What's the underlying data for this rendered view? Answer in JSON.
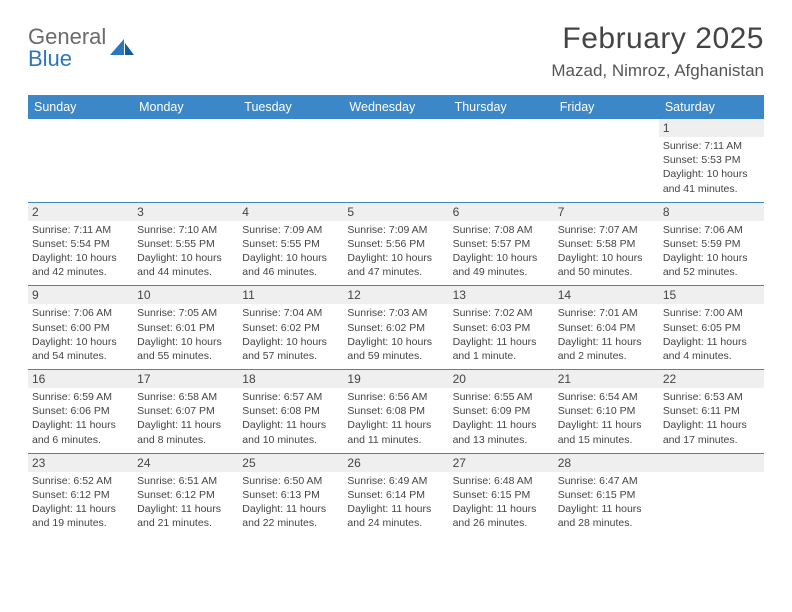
{
  "brand": {
    "name_top": "General",
    "name_bottom": "Blue"
  },
  "title": "February 2025",
  "location": "Mazad, Nimroz, Afghanistan",
  "colors": {
    "header_bg": "#3b87c8",
    "header_text": "#ffffff",
    "divider": "#3b87c8",
    "daynum_bg": "#efefef",
    "text": "#444444",
    "brand_gray": "#6a6a6a",
    "brand_blue": "#2a77bd"
  },
  "weekdays": [
    "Sunday",
    "Monday",
    "Tuesday",
    "Wednesday",
    "Thursday",
    "Friday",
    "Saturday"
  ],
  "weeks": [
    [
      null,
      null,
      null,
      null,
      null,
      null,
      {
        "d": "1",
        "sunrise": "7:11 AM",
        "sunset": "5:53 PM",
        "daylight": "10 hours and 41 minutes."
      }
    ],
    [
      {
        "d": "2",
        "sunrise": "7:11 AM",
        "sunset": "5:54 PM",
        "daylight": "10 hours and 42 minutes."
      },
      {
        "d": "3",
        "sunrise": "7:10 AM",
        "sunset": "5:55 PM",
        "daylight": "10 hours and 44 minutes."
      },
      {
        "d": "4",
        "sunrise": "7:09 AM",
        "sunset": "5:55 PM",
        "daylight": "10 hours and 46 minutes."
      },
      {
        "d": "5",
        "sunrise": "7:09 AM",
        "sunset": "5:56 PM",
        "daylight": "10 hours and 47 minutes."
      },
      {
        "d": "6",
        "sunrise": "7:08 AM",
        "sunset": "5:57 PM",
        "daylight": "10 hours and 49 minutes."
      },
      {
        "d": "7",
        "sunrise": "7:07 AM",
        "sunset": "5:58 PM",
        "daylight": "10 hours and 50 minutes."
      },
      {
        "d": "8",
        "sunrise": "7:06 AM",
        "sunset": "5:59 PM",
        "daylight": "10 hours and 52 minutes."
      }
    ],
    [
      {
        "d": "9",
        "sunrise": "7:06 AM",
        "sunset": "6:00 PM",
        "daylight": "10 hours and 54 minutes."
      },
      {
        "d": "10",
        "sunrise": "7:05 AM",
        "sunset": "6:01 PM",
        "daylight": "10 hours and 55 minutes."
      },
      {
        "d": "11",
        "sunrise": "7:04 AM",
        "sunset": "6:02 PM",
        "daylight": "10 hours and 57 minutes."
      },
      {
        "d": "12",
        "sunrise": "7:03 AM",
        "sunset": "6:02 PM",
        "daylight": "10 hours and 59 minutes."
      },
      {
        "d": "13",
        "sunrise": "7:02 AM",
        "sunset": "6:03 PM",
        "daylight": "11 hours and 1 minute."
      },
      {
        "d": "14",
        "sunrise": "7:01 AM",
        "sunset": "6:04 PM",
        "daylight": "11 hours and 2 minutes."
      },
      {
        "d": "15",
        "sunrise": "7:00 AM",
        "sunset": "6:05 PM",
        "daylight": "11 hours and 4 minutes."
      }
    ],
    [
      {
        "d": "16",
        "sunrise": "6:59 AM",
        "sunset": "6:06 PM",
        "daylight": "11 hours and 6 minutes."
      },
      {
        "d": "17",
        "sunrise": "6:58 AM",
        "sunset": "6:07 PM",
        "daylight": "11 hours and 8 minutes."
      },
      {
        "d": "18",
        "sunrise": "6:57 AM",
        "sunset": "6:08 PM",
        "daylight": "11 hours and 10 minutes."
      },
      {
        "d": "19",
        "sunrise": "6:56 AM",
        "sunset": "6:08 PM",
        "daylight": "11 hours and 11 minutes."
      },
      {
        "d": "20",
        "sunrise": "6:55 AM",
        "sunset": "6:09 PM",
        "daylight": "11 hours and 13 minutes."
      },
      {
        "d": "21",
        "sunrise": "6:54 AM",
        "sunset": "6:10 PM",
        "daylight": "11 hours and 15 minutes."
      },
      {
        "d": "22",
        "sunrise": "6:53 AM",
        "sunset": "6:11 PM",
        "daylight": "11 hours and 17 minutes."
      }
    ],
    [
      {
        "d": "23",
        "sunrise": "6:52 AM",
        "sunset": "6:12 PM",
        "daylight": "11 hours and 19 minutes."
      },
      {
        "d": "24",
        "sunrise": "6:51 AM",
        "sunset": "6:12 PM",
        "daylight": "11 hours and 21 minutes."
      },
      {
        "d": "25",
        "sunrise": "6:50 AM",
        "sunset": "6:13 PM",
        "daylight": "11 hours and 22 minutes."
      },
      {
        "d": "26",
        "sunrise": "6:49 AM",
        "sunset": "6:14 PM",
        "daylight": "11 hours and 24 minutes."
      },
      {
        "d": "27",
        "sunrise": "6:48 AM",
        "sunset": "6:15 PM",
        "daylight": "11 hours and 26 minutes."
      },
      {
        "d": "28",
        "sunrise": "6:47 AM",
        "sunset": "6:15 PM",
        "daylight": "11 hours and 28 minutes."
      },
      null
    ]
  ],
  "labels": {
    "sunrise": "Sunrise:",
    "sunset": "Sunset:",
    "daylight": "Daylight:"
  }
}
